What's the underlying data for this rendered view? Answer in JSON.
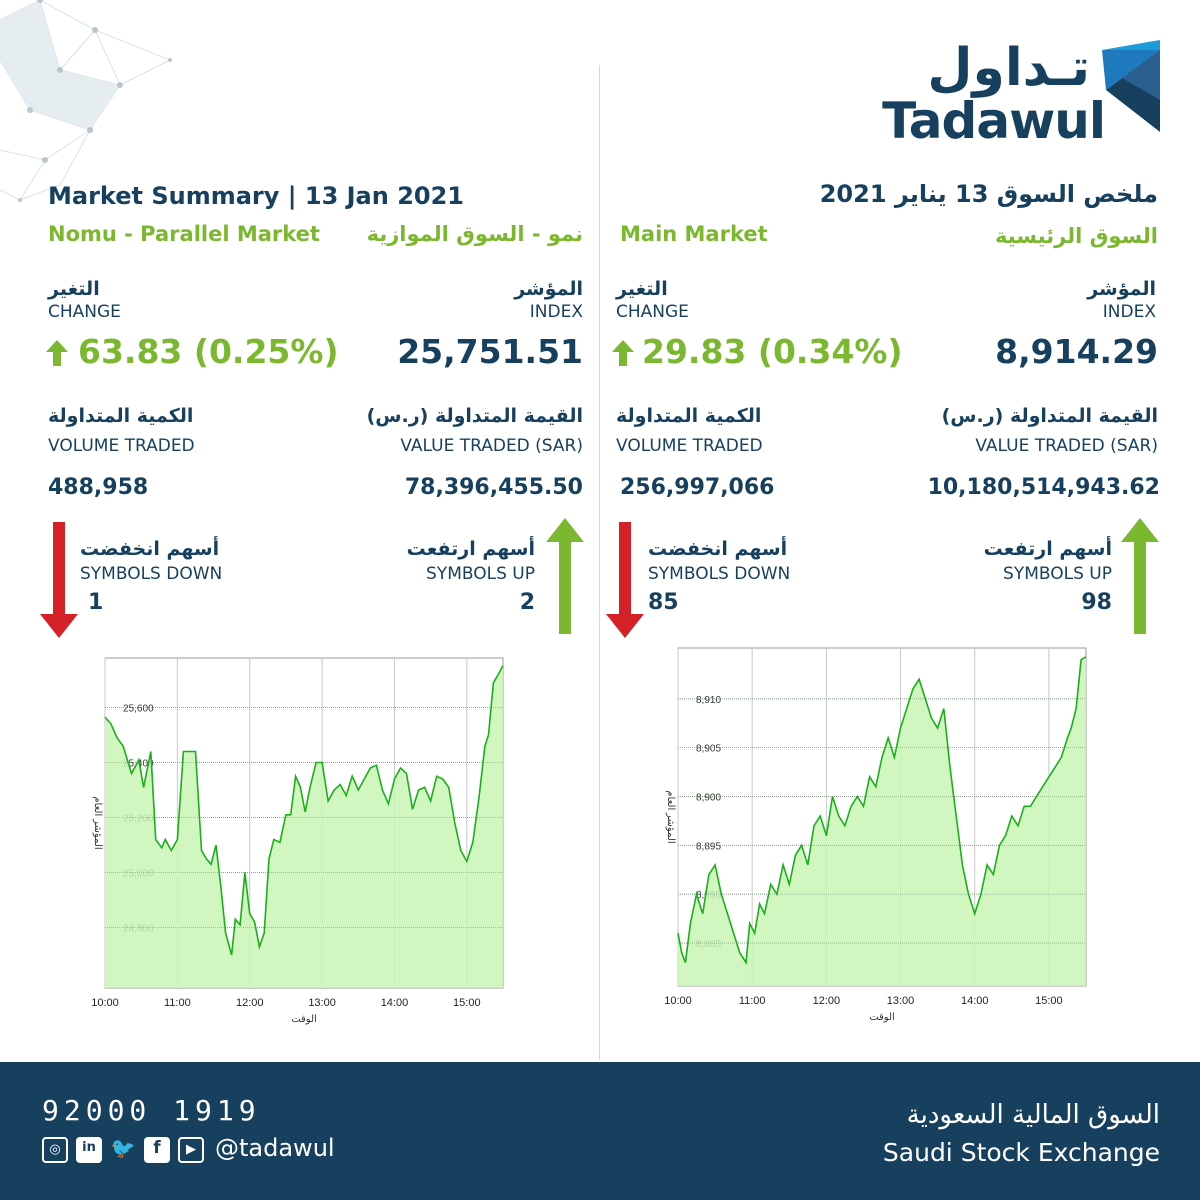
{
  "brand": {
    "logo_ar": "تـداول",
    "logo_en": "Tadawul",
    "colors": {
      "navy": "#17405f",
      "green": "#7cb82f",
      "red": "#d42027",
      "chart_fill": "#c9f5b5",
      "chart_line": "#19b019"
    }
  },
  "nomu": {
    "title_en": "Market Summary | 13 Jan 2021",
    "sub_en": "Nomu - Parallel Market",
    "sub_ar": "نمو - السوق الموازية",
    "change_ar": "التغير",
    "change_en": "CHANGE",
    "change_value": "63.83 (0.25%)",
    "index_ar": "المؤشر",
    "index_en": "INDEX",
    "index_value": "25,751.51",
    "volume_ar": "الكمية المتداولة",
    "volume_en": "VOLUME TRADED",
    "volume_value": "488,958",
    "valtraded_ar": "القيمة المتداولة (ر.س)",
    "valtraded_en": "VALUE TRADED (SAR)",
    "valtraded_value": "78,396,455.50",
    "down_ar": "أسهم انخفضت",
    "down_en": "SYMBOLS DOWN",
    "down_value": "1",
    "up_ar": "أسهم ارتفعت",
    "up_en": "SYMBOLS UP",
    "up_value": "2"
  },
  "main": {
    "title_ar": "ملخص السوق 13 يناير 2021",
    "sub_en": "Main Market",
    "sub_ar": "السوق الرئيسية",
    "change_ar": "التغير",
    "change_en": "CHANGE",
    "change_value": "29.83 (0.34%)",
    "index_ar": "المؤشر",
    "index_en": "INDEX",
    "index_value": "8,914.29",
    "volume_ar": "الكمية المتداولة",
    "volume_en": "VOLUME TRADED",
    "volume_value": "256,997,066",
    "valtraded_ar": "القيمة المتداولة (ر.س)",
    "valtraded_en": "VALUE TRADED (SAR)",
    "valtraded_value": "10,180,514,943.62",
    "down_ar": "أسهم انخفضت",
    "down_en": "SYMBOLS DOWN",
    "down_value": "85",
    "up_ar": "أسهم ارتفعت",
    "up_en": "SYMBOLS UP",
    "up_value": "98"
  },
  "footer": {
    "phone": "92000 1919",
    "handle": "@tadawul",
    "social_icons": [
      "instagram-icon",
      "linkedin-icon",
      "twitter-icon",
      "facebook-icon",
      "youtube-icon"
    ],
    "exchange_ar": "السوق المالية السعودية",
    "exchange_en": "Saudi Stock Exchange"
  },
  "chart_data": [
    {
      "type": "area",
      "xlabel": "الوقت",
      "ylabel": "المؤشر العام",
      "x_ticks": [
        "10:00",
        "11:00",
        "12:00",
        "13:00",
        "14:00",
        "15:00"
      ],
      "y_ticks": [
        24800,
        25000,
        25200,
        25400,
        25600
      ],
      "xlim": [
        0,
        330
      ],
      "ylim": [
        24580,
        25780
      ],
      "grid": true,
      "series": [
        {
          "x": [
            0,
            5,
            10,
            15,
            22,
            28,
            32,
            38,
            42,
            47,
            50,
            55,
            60,
            65,
            70,
            75,
            80,
            84,
            88,
            92,
            96,
            100,
            105,
            108,
            112,
            116,
            120,
            124,
            128,
            132,
            136,
            140,
            145,
            150,
            154,
            158,
            162,
            166,
            170,
            175,
            180,
            185,
            190,
            195,
            200,
            205,
            210,
            215,
            220,
            225,
            230,
            235,
            240,
            245,
            250,
            255,
            260,
            265,
            270,
            275,
            280,
            285,
            290,
            295,
            300,
            305,
            310,
            315,
            318,
            322,
            326,
            330
          ],
          "y": [
            25565,
            25540,
            25490,
            25460,
            25360,
            25410,
            25310,
            25440,
            25120,
            25090,
            25120,
            25080,
            25120,
            25440,
            25440,
            25440,
            25080,
            25050,
            25030,
            25100,
            24950,
            24780,
            24700,
            24830,
            24810,
            25000,
            24850,
            24820,
            24730,
            24780,
            25050,
            25120,
            25110,
            25210,
            25210,
            25350,
            25310,
            25220,
            25310,
            25400,
            25400,
            25260,
            25300,
            25320,
            25280,
            25350,
            25300,
            25340,
            25380,
            25390,
            25300,
            25250,
            25340,
            25380,
            25360,
            25230,
            25300,
            25310,
            25260,
            25350,
            25340,
            25310,
            25180,
            25080,
            25040,
            25110,
            25270,
            25460,
            25500,
            25690,
            25720,
            25752
          ]
        }
      ]
    },
    {
      "type": "area",
      "xlabel": "الوقت",
      "ylabel": "المؤشر العام",
      "x_ticks": [
        "10:00",
        "11:00",
        "12:00",
        "13:00",
        "14:00",
        "15:00"
      ],
      "y_ticks": [
        8885,
        8890,
        8895,
        8900,
        8905,
        8910
      ],
      "xlim": [
        0,
        330
      ],
      "ylim": [
        8880.6,
        8915.2
      ],
      "grid": true,
      "series": [
        {
          "x": [
            0,
            3,
            6,
            10,
            15,
            20,
            25,
            30,
            35,
            40,
            45,
            50,
            55,
            58,
            62,
            66,
            70,
            75,
            80,
            85,
            90,
            95,
            100,
            105,
            110,
            115,
            120,
            125,
            130,
            135,
            140,
            145,
            150,
            155,
            160,
            165,
            170,
            175,
            180,
            185,
            190,
            195,
            200,
            205,
            210,
            215,
            220,
            225,
            230,
            235,
            240,
            245,
            250,
            255,
            260,
            265,
            270,
            275,
            280,
            285,
            290,
            295,
            300,
            305,
            310,
            315,
            318,
            322,
            326,
            330
          ],
          "y": [
            8886,
            8884,
            8883,
            8887,
            8890,
            8888,
            8892,
            8893,
            8890,
            8888,
            8886,
            8884,
            8883,
            8887,
            8886,
            8889,
            8888,
            8891,
            8890,
            8893,
            8891,
            8894,
            8895,
            8893,
            8897,
            8898,
            8896,
            8900,
            8898,
            8897,
            8899,
            8900,
            8899,
            8902,
            8901,
            8904,
            8906,
            8904,
            8907,
            8909,
            8911,
            8912,
            8910,
            8908,
            8907,
            8909,
            8903,
            8898,
            8893,
            8890,
            8888,
            8890,
            8893,
            8892,
            8895,
            8896,
            8898,
            8897,
            8899,
            8899,
            8900,
            8901,
            8902,
            8903,
            8904,
            8906,
            8907,
            8909,
            8914,
            8914.3
          ]
        }
      ]
    }
  ]
}
